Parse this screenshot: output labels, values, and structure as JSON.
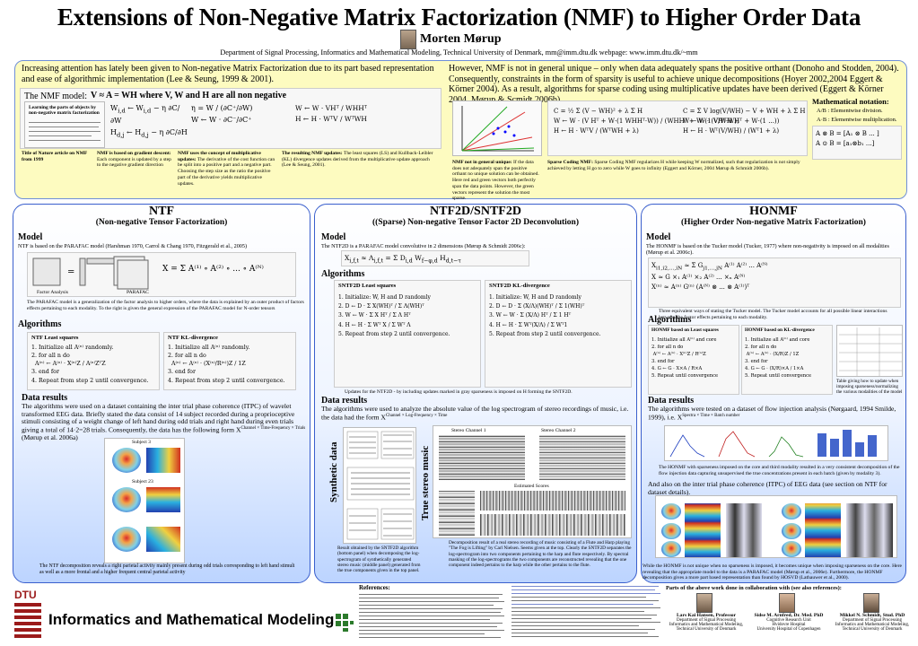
{
  "header": {
    "title": "Extensions of Non-Negative Matrix Factorization (NMF) to Higher Order Data",
    "author": "Morten Mørup",
    "affiliation": "Department of Signal Processing, Informatics and Mathematical Modeling, Technical University of Denmark, mm@imm.dtu.dk   webpage: www.imm.dtu.dk/~mm"
  },
  "intro_left": {
    "text": "Increasing attention has lately been given to Non-negative Matrix Factorization due to its part based representation and ease of algorithmic implementation (Lee & Seung, 1999 & 2001).",
    "nmf_model": "The NMF model:",
    "nature_caption": "Title of Nature article on NMF from 1999",
    "gradient_caption": "NMF is based on gradient descent:",
    "gradient_text": "Each component is updated by a step to the negative gradient direction",
    "concept_caption": "NMF uses the concept of multiplicative updates:",
    "concept_text": "The derivative of the cost function can be split into a positive part and a negative part. Choosing the step size as the ratio the positive part of the derivative yields multiplicative updates.",
    "resulting_caption": "The resulting NMF updates:",
    "resulting_text": "The least squares (LS) and Kullback-Leibler (KL) divergence updates derived from the multiplicative update approach (Lee & Seung, 2001)."
  },
  "intro_right": {
    "text": "However, NMF is not in general unique – only when data adequately spans the positive orthant (Donoho and Stodden, 2004). Consequently, constraints in the form of sparsity is useful to achieve unique decompositions (Hoyer 2002,2004 Eggert & Körner 2004). As a result, algorithms for sparse coding using multiplicative updates have been derived (Eggert & Körner 2004, Mørup & Scmidt 2006b)",
    "notation_title": "Mathematical notation:",
    "notation_div": ": Elementwise division.",
    "notation_mult": ": Elementwise multiplication.",
    "unique_caption": "NMF not in general unique:",
    "unique_text": "If the data does not adequately span the positive orthant no unique solution can be obtained. Here red and green vectors both perfectly span the data points. However, the green vectors represent the solution the most sparse.",
    "sparse_caption": "Sparse Coding NMF:",
    "sparse_text": "Sparse Coding NMF regularizes H while keeping W normalized, such that regularization is not simply achieved by letting H go to zero while W goes to infinity (Eggert and Körner, 2004 Mørup & Schmidt 2006b)."
  },
  "ntf": {
    "title": "NTF",
    "subtitle": "(Non-negative Tensor Factorization)",
    "model_heading": "Model",
    "model_text": "NTF is based on the PARAFAC model (Harshman 1970, Carrol & Chang 1970, Fitzgerald et al., 2005)",
    "factor_label": "Factor Analysis",
    "parafac_label": "PARAFAC",
    "model_caption": "The PARAFAC model is a generalization of the factor analysis to higher orders, where the data is explained by an outer product of factors effects pertaining to each modality. To the right is given the general expression of the PARAFAC model for N-order tensors",
    "algorithms_heading": "Algorithms",
    "algo_ls": "NTF Least squares",
    "algo_kl": "NTF KL-divergence",
    "data_heading": "Data results",
    "data_text": "The algorithms were used on a dataset containing the inter trial phase coherence (ITPC) of wavelet transformed EEG data. Briefly stated the data consist of 14 subject recorded during a proprioceptive stimuli consisting of a weight change of left hand during odd trials and right hand during even trials giving a total of 14·2=28 trials. Consequently, the data has the following form X",
    "data_sub": "Channel × Time-Frequency × Trials",
    "data_ref": "(Mørup et al. 2006a)",
    "plot_label": "Subject 3",
    "plot_label2": "Subject 23",
    "caption": "The NTF decomposition reveals a right parietal activity mainly present during odd trials corresponding to left hand stimuli as well as a more frontal and a higher frequent central parietal activity"
  },
  "ntf2d": {
    "title": "NTF2D/SNTF2D",
    "subtitle": "((Sparse) Non-negative Tensor Factor 2D Deconvolution)",
    "model_heading": "Model",
    "model_text": "The NTF2D is a PARAFAC model convolutive in 2 dimensions (Mørup & Schmidt 2006c):",
    "algorithms_heading": "Algorithms",
    "algo_ls": "SNTF2D Least squares",
    "algo_kl": "SNTF2D KL-divergence",
    "algo_caption": "Updates for the NTF2D - by including updates marked in gray sparseness is imposed on H forming the SNTF2D.",
    "data_heading": "Data results",
    "data_text": "The algorithms were used to analyze the absolute value of the log spectrogram of stereo recordings of music, i.e. the data had the form X",
    "data_sub": "Channel × Log-Frequency × Time",
    "synthetic_label": "Synthetic data",
    "stereo_label": "True stereo music",
    "ch1": "Stereo Channel 1",
    "ch2": "Stereo Channel 2",
    "est": "Estimated Scores",
    "synthetic_caption": "Result obtained by the SNTF2D algorithm (bottom panel) when decomposing the log-spectrogram of synthetically generated stereo music (middle panel) generated from the true components given in the top panel.",
    "stereo_caption": "Decomposition result of a real stereo recording of music consisting of a Flute and Harp playing \"The Fog is Lifting\" by Carl Nielsen. Seems given at the top. Clearly the SNTF2D separates the log-spectrogram into two components pertaining to the harp and flute respectively. By spectral masking of the log-spectrograms the two components are reconstructed revealing that the one component indeed pertains to the harp while the other pertains to the flute."
  },
  "honmf": {
    "title": "HONMF",
    "subtitle": "(Higher Order Non-negative Matrix Factorization)",
    "model_heading": "Model",
    "model_text": "The HONMF is based on the Tucker model (Tucker, 1977) where non-negativity is imposed on all modalities (Mørup et al. 2006c).",
    "model_caption": "Three equivalent ways of stating the Tucker model. The Tucker model accounts for all possible linear interactions between the factor effects pertaining to each modality.",
    "algorithms_heading": "Algorithms",
    "algo_ls": "HONMF based on Least squares",
    "algo_kl": "HONMF based on KL-divergence",
    "algo_caption": "Table giving how to update when imposing sparseness/normalizing the various modalities of the model",
    "data_heading": "Data results",
    "data_text": "The algorithms were tested on a dataset of flow injection analysis (Nørgaard, 1994 Smilde, 1999), i.e. X",
    "data_sub": "Spectra × Time × Batch number",
    "mid_caption": "The HONMF with sparseness imposed on the core and third modality resulted in a very consistent decomposition of the flow injection data capturing unsupervised the true concentrations present in each batch (given by modality 3).",
    "mid_text": "And also on the inter trial phase coherence (ITPC) of EEG data (see section on NTF for dataset details).",
    "bottom_caption": "While the HONMF is not unique when no sparseness is imposed, it becomes unique when imposing sparseness on the core. Here revealing that the appropriate model to the data is a PARAFAC model (Mørup et al., 2006e). Furthermore, the HONMF decomposition gives a more part based representation than found by HOSVD (Lathauwer et al., 2000)."
  },
  "footer": {
    "dept": "Informatics and Mathematical Modeling",
    "dtu": "DTU",
    "references_title": "References:",
    "collab_title": "Parts of the above work done in collaboration with (see also references):",
    "people": [
      {
        "name": "Lars Kai Hansen, Professor",
        "org1": "Department of Signal Processing",
        "org2": "Informatics and Mathematical Modeling,",
        "org3": "Technical University of Denmark"
      },
      {
        "name": "Sidse M. Arnfred, Dr. Med. PhD",
        "org1": "Cognitive Research Unit",
        "org2": "Hvidovre Hospital",
        "org3": "University Hospital of Copenhagen"
      },
      {
        "name": "Mikkel N. Schmidt, Stud. PhD",
        "org1": "Department of Signal Processing",
        "org2": "Informatics and Mathematical Modeling,",
        "org3": "Technical University of Denmark"
      }
    ]
  },
  "colors": {
    "accent_blue": "#3a5fcd",
    "yellow_box": "#fdfbc0",
    "dtu_red": "#9b1b1b"
  }
}
